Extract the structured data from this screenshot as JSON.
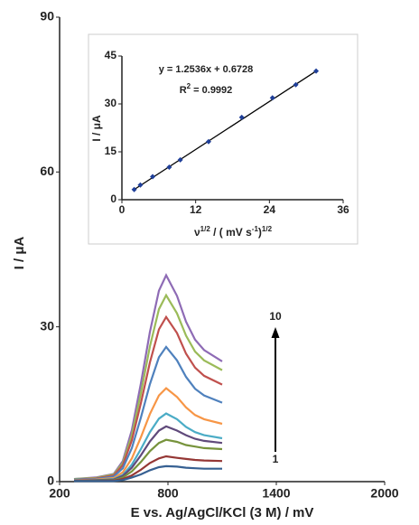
{
  "chart_data": [
    {
      "type": "line",
      "xlabel": "E vs. Ag/AgCl/KCl (3 M) / mV",
      "ylabel": "I / μA",
      "xlim": [
        200,
        2000
      ],
      "xticks": [
        200,
        800,
        1400,
        2000
      ],
      "ylim": [
        0,
        90
      ],
      "yticks": [
        0,
        30,
        60,
        90
      ],
      "x": [
        280,
        400,
        500,
        550,
        600,
        650,
        700,
        750,
        790,
        850,
        900,
        950,
        1000,
        1100
      ],
      "series": [
        {
          "color": "#8e6bb5",
          "values": [
            0.5,
            0.8,
            1.5,
            4,
            10,
            19,
            29,
            37,
            40,
            36,
            31,
            27.5,
            25.5,
            23.3
          ]
        },
        {
          "color": "#9bbb59",
          "values": [
            0.5,
            0.7,
            1.4,
            3.6,
            9,
            17.1,
            26.2,
            33.4,
            36.1,
            32.6,
            28.3,
            25.2,
            23.5,
            21.6
          ]
        },
        {
          "color": "#c0504d",
          "values": [
            0.4,
            0.6,
            1.2,
            3.2,
            8,
            15.2,
            23.1,
            29.5,
            31.9,
            28.8,
            24.8,
            22.1,
            20.5,
            18.8
          ]
        },
        {
          "color": "#4f81bd",
          "values": [
            0.4,
            0.5,
            1,
            2.6,
            6.5,
            12.4,
            18.9,
            24.1,
            26.1,
            23.5,
            20.3,
            18,
            16.7,
            15.3
          ]
        },
        {
          "color": "#f79646",
          "values": [
            0.3,
            0.4,
            0.7,
            1.8,
            4.5,
            8.6,
            13.1,
            16.7,
            18.1,
            16.4,
            14.4,
            12.9,
            12.1,
            11.2
          ]
        },
        {
          "color": "#4bacc6",
          "values": [
            0.2,
            0.3,
            0.5,
            1.3,
            3.3,
            6.3,
            9.6,
            12.2,
            13.2,
            12.1,
            10.6,
            9.6,
            9,
            8.4
          ]
        },
        {
          "color": "#604a7b",
          "values": [
            0.2,
            0.3,
            0.4,
            1.1,
            2.7,
            5.1,
            7.8,
            9.9,
            10.7,
            9.9,
            9,
            8.3,
            7.9,
            7.5
          ]
        },
        {
          "color": "#77933c",
          "values": [
            0.1,
            0.2,
            0.3,
            0.8,
            2,
            3.8,
            5.9,
            7.5,
            8.1,
            7.7,
            7.1,
            6.8,
            6.5,
            6.3
          ]
        },
        {
          "color": "#953735",
          "values": [
            0.1,
            0.1,
            0.2,
            0.5,
            1.2,
            2.3,
            3.6,
            4.5,
            4.9,
            4.6,
            4.4,
            4.2,
            4.1,
            4
          ]
        },
        {
          "color": "#366092",
          "values": [
            0.1,
            0.1,
            0.1,
            0.3,
            0.8,
            1.4,
            2.2,
            2.8,
            3,
            2.9,
            2.7,
            2.6,
            2.5,
            2.5
          ]
        }
      ],
      "annotations": [
        "10",
        "1"
      ]
    },
    {
      "type": "scatter",
      "xlabel": [
        "ν",
        "1/2",
        " / ( mV s",
        "-1",
        ")",
        "1/2"
      ],
      "ylabel": "I / μA",
      "xlim": [
        0,
        36
      ],
      "xticks": [
        0,
        12,
        24,
        36
      ],
      "ylim": [
        0,
        45
      ],
      "yticks": [
        0,
        15,
        30,
        45
      ],
      "x": [
        2,
        3,
        5,
        7.7,
        9.5,
        14.1,
        19.5,
        24.5,
        28.3,
        31.6
      ],
      "values": [
        3.2,
        4.6,
        7.2,
        10.2,
        12.5,
        18.2,
        25.8,
        31.9,
        36,
        40.3
      ],
      "color": "#1f3f99",
      "fit": {
        "slope": 1.2536,
        "intercept": 0.6728,
        "label": "y = 1.2536x + 0.6728",
        "r2_label": [
          "R",
          "2",
          " = 0.9992"
        ]
      }
    }
  ]
}
